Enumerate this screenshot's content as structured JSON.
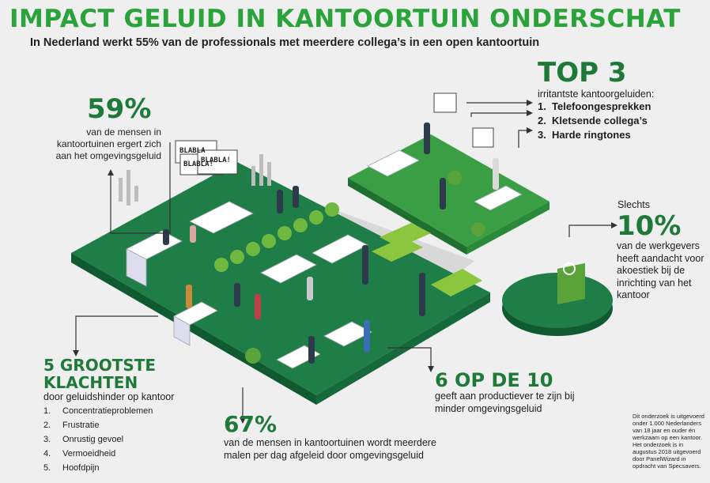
{
  "title": "IMPACT GELUID IN KANTOORTUIN ONDERSCHAT",
  "subtitle": "In Nederland werkt 55% van de professionals met meerdere collega’s in een open kantoortuin",
  "stat59": {
    "value": "59%",
    "text": "van de mensen in kantoortuinen ergert zich aan het omgevingsgeluid"
  },
  "top3": {
    "heading": "TOP 3",
    "intro": "irritantste kantoorgeluiden:",
    "items": [
      {
        "n": "1.",
        "label": "Telefoongesprekken"
      },
      {
        "n": "2.",
        "label": "Kletsende collega’s"
      },
      {
        "n": "3.",
        "label": "Harde ringtones"
      }
    ]
  },
  "stat10": {
    "prefix": "Slechts",
    "value": "10%",
    "text": "van de werkgevers heeft aandacht voor akoestiek bij de inrichting van het kantoor",
    "pie_fraction": 0.1
  },
  "klachten": {
    "heading_line1": "5 GROOTSTE",
    "heading_line2": "KLACHTEN",
    "sub": "door geluidshinder op kantoor",
    "items": [
      {
        "n": "1.",
        "label": "Concentratieproblemen"
      },
      {
        "n": "2.",
        "label": "Frustratie"
      },
      {
        "n": "3.",
        "label": "Onrustig gevoel"
      },
      {
        "n": "4.",
        "label": "Vermoeidheid"
      },
      {
        "n": "5.",
        "label": "Hoofdpijn"
      }
    ]
  },
  "stat67": {
    "value": "67%",
    "text": "van de mensen in kantoortuinen wordt meerdere malen per dag afgeleid door omgevingsgeluid"
  },
  "stat610": {
    "value": "6 OP DE 10",
    "text": "geeft aan productiever te zijn bij minder omgevingsgeluid"
  },
  "bubbles": [
    "BLABLA",
    "BLABLA!",
    "BLABLA!"
  ],
  "footnote": "Dit onderzoek is uitgevoerd onder 1.000 Nederlanders van 18 jaar en ouder én werkzaam op een kantoor. Het onderzoek is in augustus 2018 uitgevoerd door PanelWizard in opdracht van Specsavers.",
  "colors": {
    "title_green": "#2aa33a",
    "stat_green": "#1f7a3a",
    "floor_green": "#1f7d47",
    "light_green": "#8cc63f"
  }
}
